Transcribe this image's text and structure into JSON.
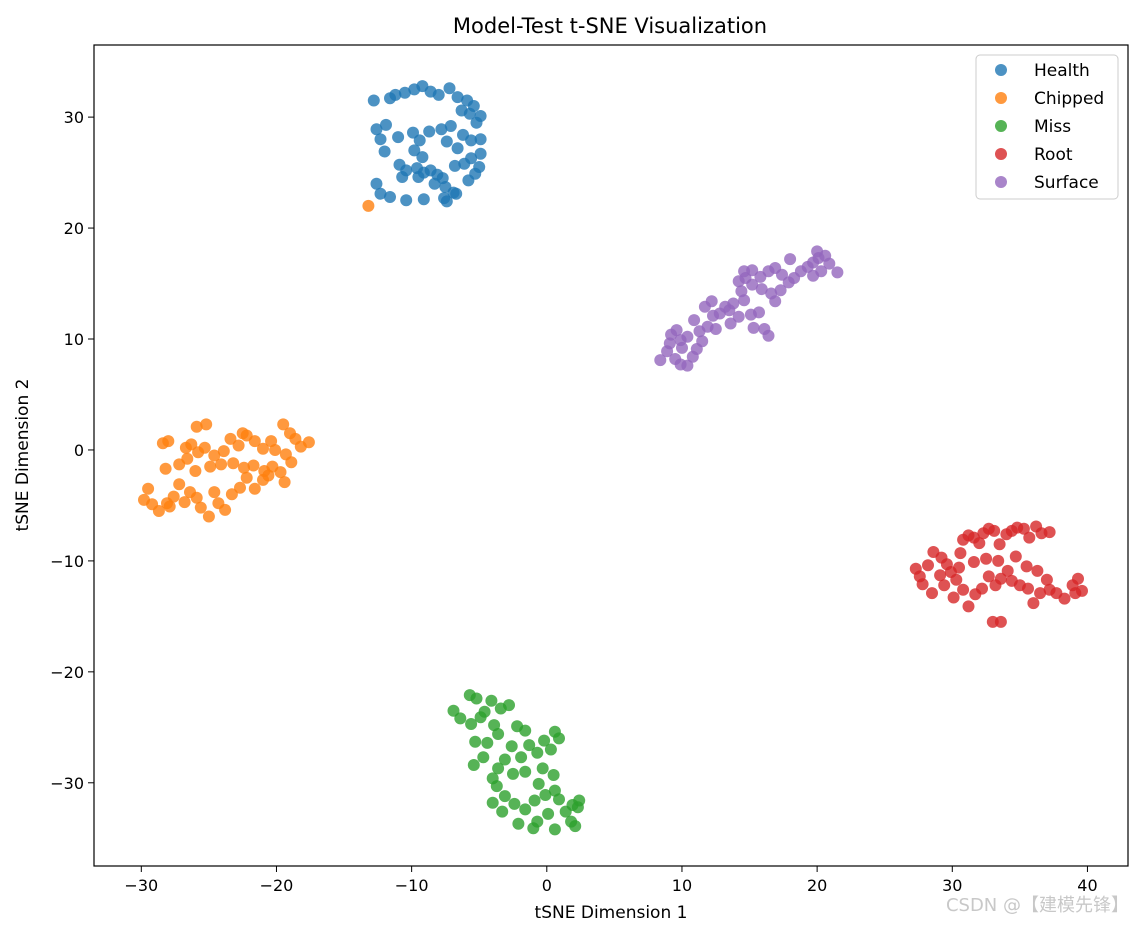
{
  "watermark": "CSDN @【建模先锋】",
  "chart_data": {
    "type": "scatter",
    "title": "Model-Test t-SNE Visualization",
    "xlabel": "tSNE Dimension 1",
    "ylabel": "tSNE Dimension 2",
    "xlim": [
      -33.5,
      43
    ],
    "ylim": [
      -37.5,
      36.5
    ],
    "xticks": [
      -30,
      -20,
      -10,
      0,
      10,
      20,
      30,
      40
    ],
    "yticks": [
      -30,
      -20,
      -10,
      0,
      10,
      20,
      30
    ],
    "tick_labels_x": [
      "−30",
      "−20",
      "−10",
      "0",
      "10",
      "20",
      "30",
      "40"
    ],
    "tick_labels_y": [
      "−30",
      "−20",
      "−10",
      "0",
      "10",
      "20",
      "30"
    ],
    "grid": false,
    "legend_position": "top-right",
    "series": [
      {
        "name": "Health",
        "color": "#1f77b4",
        "points": [
          [
            -12.8,
            31.5
          ],
          [
            -11.6,
            31.7
          ],
          [
            -11.2,
            32.0
          ],
          [
            -10.5,
            32.2
          ],
          [
            -9.8,
            32.5
          ],
          [
            -9.2,
            32.8
          ],
          [
            -8.6,
            32.3
          ],
          [
            -8.0,
            32.0
          ],
          [
            -7.2,
            32.6
          ],
          [
            -6.6,
            31.8
          ],
          [
            -5.9,
            31.5
          ],
          [
            -5.4,
            31.0
          ],
          [
            -5.7,
            30.3
          ],
          [
            -6.3,
            30.6
          ],
          [
            -4.9,
            30.1
          ],
          [
            -5.2,
            29.5
          ],
          [
            -12.6,
            28.9
          ],
          [
            -11.9,
            29.3
          ],
          [
            -12.3,
            28.0
          ],
          [
            -11.0,
            28.2
          ],
          [
            -9.9,
            28.6
          ],
          [
            -9.4,
            27.9
          ],
          [
            -8.7,
            28.7
          ],
          [
            -7.8,
            28.9
          ],
          [
            -7.1,
            29.2
          ],
          [
            -6.2,
            28.4
          ],
          [
            -5.6,
            27.9
          ],
          [
            -4.9,
            28.0
          ],
          [
            -7.4,
            27.8
          ],
          [
            -6.6,
            27.2
          ],
          [
            -12.0,
            26.9
          ],
          [
            -9.8,
            27.0
          ],
          [
            -9.2,
            26.4
          ],
          [
            -4.9,
            26.7
          ],
          [
            -5.6,
            26.3
          ],
          [
            -6.1,
            25.8
          ],
          [
            -5.0,
            25.5
          ],
          [
            -6.8,
            25.6
          ],
          [
            -10.9,
            25.7
          ],
          [
            -10.4,
            25.2
          ],
          [
            -9.6,
            25.4
          ],
          [
            -9.1,
            25.0
          ],
          [
            -8.6,
            25.2
          ],
          [
            -8.1,
            24.8
          ],
          [
            -7.7,
            24.5
          ],
          [
            -8.3,
            24.0
          ],
          [
            -7.5,
            23.7
          ],
          [
            -6.7,
            23.1
          ],
          [
            -5.8,
            24.3
          ],
          [
            -5.3,
            24.9
          ],
          [
            -10.7,
            24.6
          ],
          [
            -9.5,
            24.6
          ],
          [
            -12.6,
            24.0
          ],
          [
            -12.3,
            23.1
          ],
          [
            -11.6,
            22.8
          ],
          [
            -10.4,
            22.5
          ],
          [
            -9.1,
            22.6
          ],
          [
            -7.6,
            22.7
          ],
          [
            -6.9,
            23.2
          ],
          [
            -7.4,
            22.4
          ]
        ]
      },
      {
        "name": "Chipped",
        "color": "#ff7f0e",
        "points": [
          [
            -13.2,
            22.0
          ],
          [
            -28.4,
            0.6
          ],
          [
            -28.0,
            0.8
          ],
          [
            -26.7,
            0.2
          ],
          [
            -26.3,
            0.5
          ],
          [
            -25.8,
            -0.2
          ],
          [
            -25.3,
            0.2
          ],
          [
            -24.6,
            -0.5
          ],
          [
            -23.9,
            -0.1
          ],
          [
            -22.8,
            0.4
          ],
          [
            -22.2,
            1.3
          ],
          [
            -21.6,
            0.8
          ],
          [
            -21.0,
            0.1
          ],
          [
            -20.4,
            0.8
          ],
          [
            -19.5,
            2.3
          ],
          [
            -19.0,
            1.5
          ],
          [
            -18.6,
            1.0
          ],
          [
            -18.2,
            0.3
          ],
          [
            -17.6,
            0.7
          ],
          [
            -20.1,
            0.0
          ],
          [
            -19.3,
            -0.4
          ],
          [
            -18.9,
            -1.1
          ],
          [
            -25.9,
            2.1
          ],
          [
            -25.2,
            2.3
          ],
          [
            -23.4,
            1.0
          ],
          [
            -22.5,
            1.5
          ],
          [
            -26.6,
            -0.8
          ],
          [
            -27.2,
            -1.3
          ],
          [
            -28.2,
            -1.7
          ],
          [
            -26.0,
            -1.9
          ],
          [
            -24.9,
            -1.5
          ],
          [
            -24.1,
            -1.3
          ],
          [
            -23.2,
            -1.2
          ],
          [
            -22.4,
            -1.6
          ],
          [
            -21.7,
            -1.4
          ],
          [
            -20.9,
            -1.9
          ],
          [
            -20.3,
            -1.5
          ],
          [
            -19.7,
            -2.0
          ],
          [
            -29.5,
            -3.5
          ],
          [
            -29.8,
            -4.5
          ],
          [
            -29.2,
            -4.9
          ],
          [
            -28.7,
            -5.5
          ],
          [
            -28.1,
            -4.8
          ],
          [
            -27.6,
            -4.2
          ],
          [
            -27.2,
            -3.1
          ],
          [
            -26.8,
            -4.7
          ],
          [
            -26.4,
            -3.8
          ],
          [
            -25.9,
            -4.3
          ],
          [
            -25.6,
            -5.2
          ],
          [
            -25.0,
            -6.0
          ],
          [
            -24.3,
            -4.8
          ],
          [
            -23.8,
            -5.4
          ],
          [
            -23.3,
            -4.0
          ],
          [
            -22.7,
            -3.4
          ],
          [
            -22.2,
            -2.5
          ],
          [
            -21.6,
            -3.5
          ],
          [
            -21.0,
            -2.7
          ],
          [
            -20.6,
            -2.3
          ],
          [
            -19.4,
            -2.9
          ],
          [
            -24.6,
            -3.8
          ],
          [
            -27.9,
            -5.1
          ]
        ]
      },
      {
        "name": "Miss",
        "color": "#2ca02c",
        "points": [
          [
            -6.9,
            -23.5
          ],
          [
            -6.4,
            -24.2
          ],
          [
            -5.7,
            -22.1
          ],
          [
            -5.2,
            -22.4
          ],
          [
            -4.6,
            -23.6
          ],
          [
            -4.1,
            -22.6
          ],
          [
            -3.4,
            -23.3
          ],
          [
            -2.8,
            -23.0
          ],
          [
            -5.6,
            -24.7
          ],
          [
            -4.9,
            -24.1
          ],
          [
            -3.9,
            -24.8
          ],
          [
            -2.2,
            -24.9
          ],
          [
            -1.6,
            -25.3
          ],
          [
            0.6,
            -25.4
          ],
          [
            0.9,
            -26.0
          ],
          [
            -0.2,
            -26.2
          ],
          [
            -5.3,
            -26.3
          ],
          [
            -4.4,
            -26.4
          ],
          [
            -3.6,
            -25.6
          ],
          [
            -2.6,
            -26.7
          ],
          [
            -1.3,
            -26.6
          ],
          [
            -0.7,
            -27.3
          ],
          [
            0.3,
            -27.0
          ],
          [
            -1.9,
            -27.7
          ],
          [
            -3.1,
            -27.9
          ],
          [
            -4.7,
            -27.7
          ],
          [
            -5.4,
            -28.4
          ],
          [
            -3.6,
            -28.7
          ],
          [
            -2.5,
            -29.2
          ],
          [
            -1.6,
            -29.0
          ],
          [
            -0.3,
            -28.7
          ],
          [
            0.5,
            -29.3
          ],
          [
            -0.6,
            -30.1
          ],
          [
            -4.0,
            -29.6
          ],
          [
            -3.7,
            -30.3
          ],
          [
            -3.1,
            -31.2
          ],
          [
            -4.0,
            -31.8
          ],
          [
            -2.4,
            -31.9
          ],
          [
            -1.6,
            -32.4
          ],
          [
            -0.9,
            -31.6
          ],
          [
            -0.1,
            -31.1
          ],
          [
            0.6,
            -30.7
          ],
          [
            0.9,
            -31.5
          ],
          [
            0.1,
            -32.8
          ],
          [
            -0.7,
            -33.5
          ],
          [
            -1.0,
            -34.1
          ],
          [
            -2.1,
            -33.7
          ],
          [
            -3.3,
            -32.6
          ],
          [
            0.6,
            -34.2
          ],
          [
            1.4,
            -32.6
          ],
          [
            1.8,
            -33.5
          ],
          [
            2.1,
            -33.9
          ],
          [
            2.3,
            -32.2
          ],
          [
            2.4,
            -31.6
          ],
          [
            1.9,
            -32.0
          ]
        ]
      },
      {
        "name": "Root",
        "color": "#d62728",
        "points": [
          [
            27.3,
            -10.7
          ],
          [
            27.6,
            -11.4
          ],
          [
            27.8,
            -12.1
          ],
          [
            28.2,
            -10.4
          ],
          [
            28.6,
            -9.2
          ],
          [
            29.2,
            -9.7
          ],
          [
            29.6,
            -10.3
          ],
          [
            29.9,
            -11.0
          ],
          [
            30.3,
            -11.7
          ],
          [
            30.6,
            -9.3
          ],
          [
            30.8,
            -8.1
          ],
          [
            31.2,
            -7.7
          ],
          [
            31.6,
            -7.9
          ],
          [
            32.0,
            -8.4
          ],
          [
            32.3,
            -7.5
          ],
          [
            32.7,
            -7.1
          ],
          [
            33.1,
            -7.3
          ],
          [
            33.5,
            -8.5
          ],
          [
            34.0,
            -7.6
          ],
          [
            34.4,
            -7.3
          ],
          [
            34.8,
            -7.0
          ],
          [
            35.3,
            -7.1
          ],
          [
            35.7,
            -7.9
          ],
          [
            36.2,
            -6.9
          ],
          [
            36.6,
            -7.5
          ],
          [
            37.2,
            -7.4
          ],
          [
            28.5,
            -12.9
          ],
          [
            29.4,
            -12.2
          ],
          [
            30.1,
            -13.3
          ],
          [
            30.8,
            -12.6
          ],
          [
            31.2,
            -14.1
          ],
          [
            31.7,
            -13.0
          ],
          [
            32.2,
            -12.5
          ],
          [
            32.7,
            -11.4
          ],
          [
            33.2,
            -12.2
          ],
          [
            33.6,
            -11.6
          ],
          [
            34.1,
            -10.9
          ],
          [
            34.4,
            -11.8
          ],
          [
            35.0,
            -12.2
          ],
          [
            35.6,
            -12.5
          ],
          [
            36.0,
            -13.8
          ],
          [
            36.5,
            -12.9
          ],
          [
            37.2,
            -12.6
          ],
          [
            37.7,
            -12.9
          ],
          [
            38.3,
            -13.4
          ],
          [
            38.9,
            -12.2
          ],
          [
            39.3,
            -11.6
          ],
          [
            39.6,
            -12.7
          ],
          [
            39.1,
            -12.9
          ],
          [
            31.6,
            -10.1
          ],
          [
            32.5,
            -9.8
          ],
          [
            33.4,
            -10.0
          ],
          [
            34.7,
            -9.6
          ],
          [
            35.5,
            -10.5
          ],
          [
            36.3,
            -10.9
          ],
          [
            37.0,
            -11.7
          ],
          [
            33.0,
            -15.5
          ],
          [
            33.6,
            -15.5
          ],
          [
            29.1,
            -11.3
          ],
          [
            30.5,
            -10.6
          ]
        ]
      },
      {
        "name": "Surface",
        "color": "#9467bd",
        "points": [
          [
            8.4,
            8.1
          ],
          [
            8.9,
            8.9
          ],
          [
            9.1,
            9.6
          ],
          [
            9.2,
            10.4
          ],
          [
            9.6,
            10.8
          ],
          [
            9.9,
            9.9
          ],
          [
            10.4,
            10.2
          ],
          [
            10.0,
            9.2
          ],
          [
            9.5,
            8.2
          ],
          [
            9.9,
            7.7
          ],
          [
            10.4,
            7.6
          ],
          [
            10.8,
            8.4
          ],
          [
            11.1,
            9.1
          ],
          [
            11.5,
            9.8
          ],
          [
            11.3,
            10.7
          ],
          [
            11.9,
            11.1
          ],
          [
            12.3,
            12.1
          ],
          [
            12.5,
            10.9
          ],
          [
            12.8,
            12.3
          ],
          [
            13.2,
            12.9
          ],
          [
            10.9,
            11.7
          ],
          [
            11.7,
            12.9
          ],
          [
            12.2,
            13.4
          ],
          [
            13.5,
            12.6
          ],
          [
            13.8,
            13.2
          ],
          [
            14.4,
            14.3
          ],
          [
            14.6,
            13.5
          ],
          [
            14.2,
            12.0
          ],
          [
            13.6,
            11.4
          ],
          [
            15.1,
            12.2
          ],
          [
            15.7,
            12.4
          ],
          [
            15.3,
            11.0
          ],
          [
            16.1,
            10.9
          ],
          [
            16.4,
            10.3
          ],
          [
            16.9,
            13.4
          ],
          [
            17.3,
            14.4
          ],
          [
            16.6,
            14.1
          ],
          [
            15.9,
            14.5
          ],
          [
            15.2,
            14.9
          ],
          [
            14.7,
            15.5
          ],
          [
            14.2,
            15.2
          ],
          [
            14.6,
            16.1
          ],
          [
            15.2,
            16.2
          ],
          [
            15.8,
            15.6
          ],
          [
            16.4,
            16.1
          ],
          [
            16.9,
            16.4
          ],
          [
            17.4,
            15.8
          ],
          [
            17.9,
            15.1
          ],
          [
            18.3,
            15.5
          ],
          [
            18.8,
            16.1
          ],
          [
            19.3,
            16.5
          ],
          [
            19.7,
            16.9
          ],
          [
            20.1,
            17.3
          ],
          [
            20.6,
            17.5
          ],
          [
            20.9,
            16.8
          ],
          [
            20.3,
            16.1
          ],
          [
            19.7,
            15.7
          ],
          [
            21.5,
            16.0
          ],
          [
            20.0,
            17.9
          ],
          [
            18.0,
            17.2
          ]
        ]
      }
    ]
  }
}
